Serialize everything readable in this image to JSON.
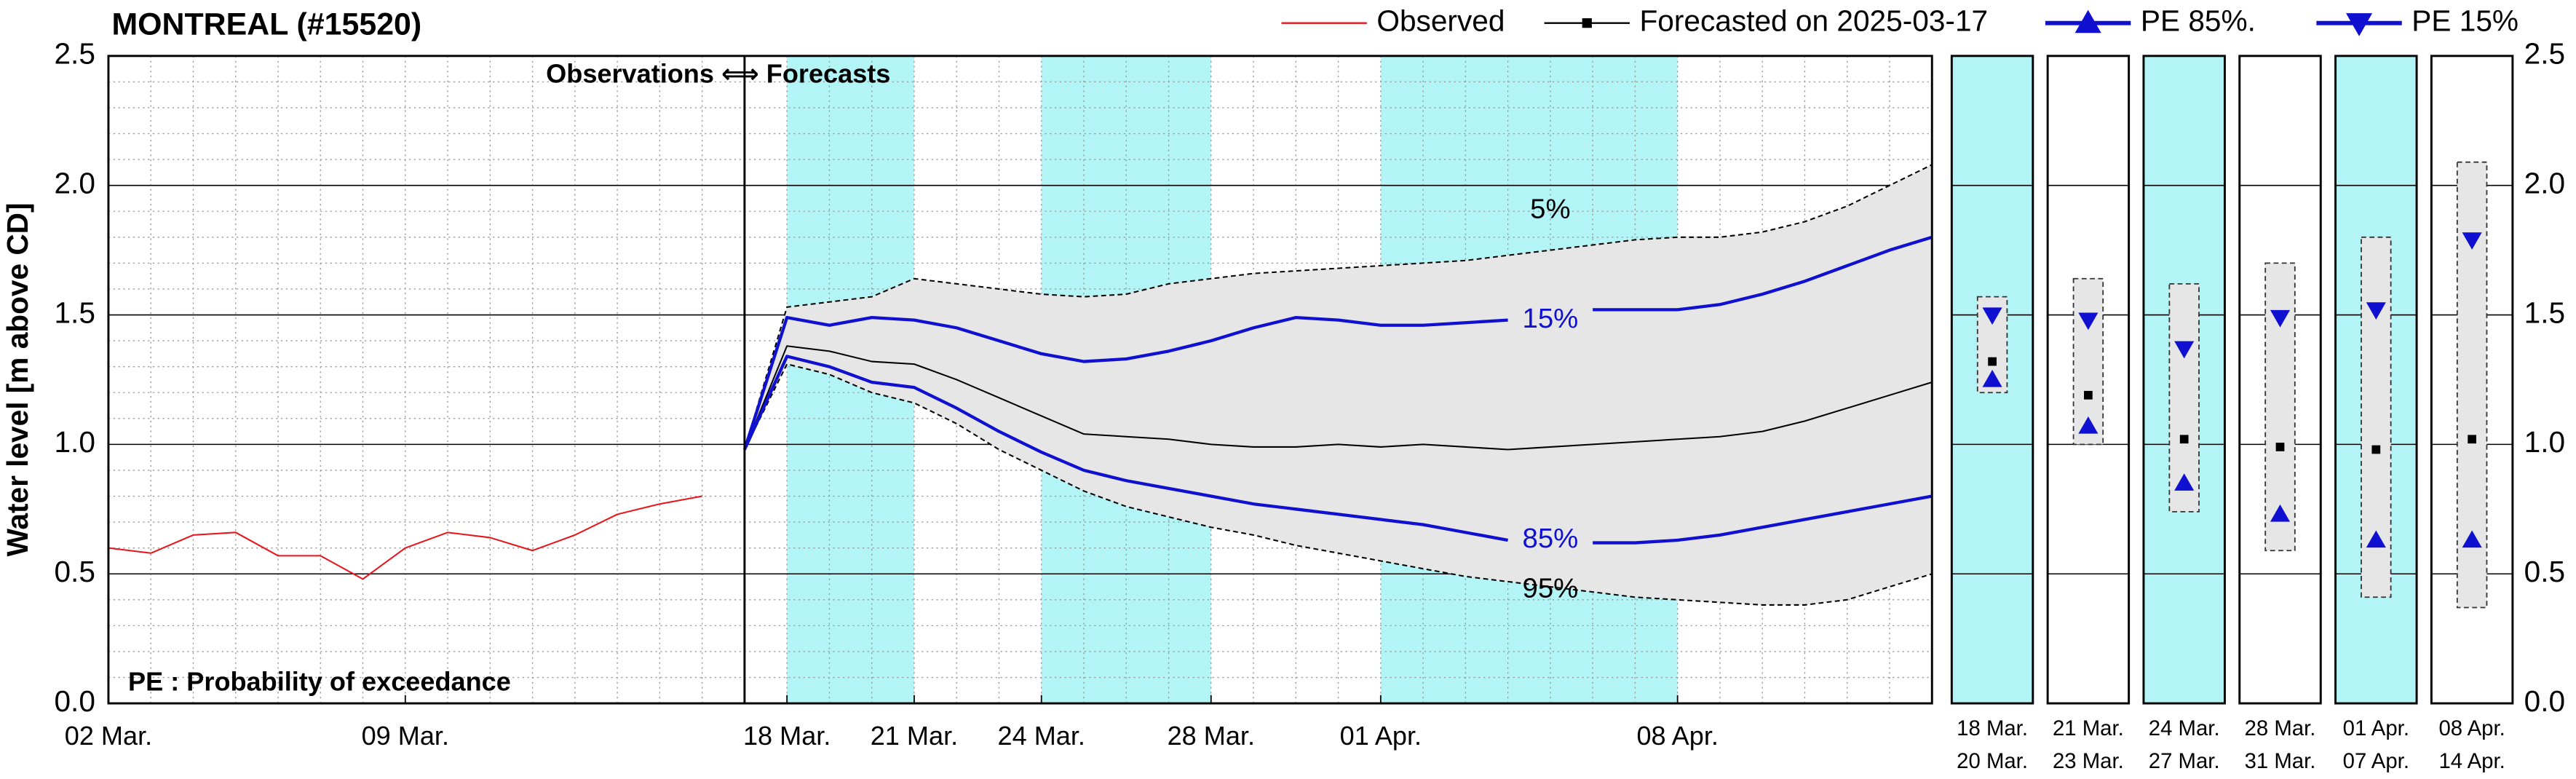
{
  "chart_data": {
    "type": "line",
    "title": "MONTREAL (#15520)",
    "y_label": "Water level [m above CD]",
    "ylim": [
      0,
      2.5
    ],
    "yticks": [
      {
        "value": 0,
        "label": "0.0"
      },
      {
        "value": 0.5,
        "label": "0.5"
      },
      {
        "value": 1,
        "label": "1.0"
      },
      {
        "value": 1.5,
        "label": "1.5"
      },
      {
        "value": 2,
        "label": "2.0"
      },
      {
        "value": 2.5,
        "label": "2.5"
      }
    ],
    "xlim": [
      "2025-03-02",
      "2025-04-14"
    ],
    "xticks": [
      {
        "value": "2025-03-02",
        "label": "02 Mar."
      },
      {
        "value": "2025-03-09",
        "label": "09 Mar."
      },
      {
        "value": "2025-03-18",
        "label": "18 Mar."
      },
      {
        "value": "2025-03-21",
        "label": "21 Mar."
      },
      {
        "value": "2025-03-24",
        "label": "24 Mar."
      },
      {
        "value": "2025-03-28",
        "label": "28 Mar."
      },
      {
        "value": "2025-04-01",
        "label": "01 Apr."
      },
      {
        "value": "2025-04-08",
        "label": "08 Apr."
      }
    ],
    "grid": true,
    "highlight_color": "#b3f5f7",
    "envelope_color": "#e6e6e6",
    "series": [
      {
        "name": "Observed",
        "color": "#e8141a",
        "marker": "none",
        "x": [
          "2025-03-02",
          "2025-03-03",
          "2025-03-04",
          "2025-03-05",
          "2025-03-06",
          "2025-03-07",
          "2025-03-08",
          "2025-03-09",
          "2025-03-10",
          "2025-03-11",
          "2025-03-12",
          "2025-03-13",
          "2025-03-14",
          "2025-03-15",
          "2025-03-16"
        ],
        "values": [
          0.6,
          0.58,
          0.65,
          0.66,
          0.57,
          0.57,
          0.48,
          0.6,
          0.66,
          0.64,
          0.59,
          0.65,
          0.73,
          0.77,
          0.8
        ]
      },
      {
        "name": "Forecasted on 2025-03-17",
        "color": "#000000",
        "marker": "square",
        "x": [
          "2025-03-17",
          "2025-03-18",
          "2025-03-19",
          "2025-03-20",
          "2025-03-21",
          "2025-03-22",
          "2025-03-23",
          "2025-03-24",
          "2025-03-25",
          "2025-03-26",
          "2025-03-27",
          "2025-03-28",
          "2025-03-29",
          "2025-03-30",
          "2025-03-31",
          "2025-04-01",
          "2025-04-02",
          "2025-04-03",
          "2025-04-04",
          "2025-04-05",
          "2025-04-06",
          "2025-04-07",
          "2025-04-08",
          "2025-04-09",
          "2025-04-10",
          "2025-04-11",
          "2025-04-12",
          "2025-04-13",
          "2025-04-14"
        ],
        "values": [
          0.98,
          1.38,
          1.36,
          1.32,
          1.31,
          1.25,
          1.18,
          1.11,
          1.04,
          1.03,
          1.02,
          1.0,
          0.99,
          0.99,
          1.0,
          0.99,
          1.0,
          0.99,
          0.98,
          0.99,
          1.0,
          1.01,
          1.02,
          1.03,
          1.05,
          1.09,
          1.14,
          1.19,
          1.24
        ]
      },
      {
        "name": "PE 85%.",
        "color": "#1010d0",
        "marker": "triangle-up",
        "label": "85%",
        "x": [
          "2025-03-17",
          "2025-03-18",
          "2025-03-19",
          "2025-03-20",
          "2025-03-21",
          "2025-03-22",
          "2025-03-23",
          "2025-03-24",
          "2025-03-25",
          "2025-03-26",
          "2025-03-27",
          "2025-03-28",
          "2025-03-29",
          "2025-03-30",
          "2025-03-31",
          "2025-04-01",
          "2025-04-02",
          "2025-04-03",
          "2025-04-04",
          "2025-04-05",
          "2025-04-06",
          "2025-04-07",
          "2025-04-08",
          "2025-04-09",
          "2025-04-10",
          "2025-04-11",
          "2025-04-12",
          "2025-04-13",
          "2025-04-14"
        ],
        "values": [
          0.98,
          1.34,
          1.3,
          1.24,
          1.22,
          1.14,
          1.05,
          0.97,
          0.9,
          0.86,
          0.83,
          0.8,
          0.77,
          0.75,
          0.73,
          0.71,
          0.69,
          0.66,
          0.63,
          null,
          0.62,
          0.62,
          0.63,
          0.65,
          0.68,
          0.71,
          0.74,
          0.77,
          0.8
        ]
      },
      {
        "name": "PE 15%",
        "color": "#1010d0",
        "marker": "triangle-down",
        "label": "15%",
        "x": [
          "2025-03-17",
          "2025-03-18",
          "2025-03-19",
          "2025-03-20",
          "2025-03-21",
          "2025-03-22",
          "2025-03-23",
          "2025-03-24",
          "2025-03-25",
          "2025-03-26",
          "2025-03-27",
          "2025-03-28",
          "2025-03-29",
          "2025-03-30",
          "2025-03-31",
          "2025-04-01",
          "2025-04-02",
          "2025-04-03",
          "2025-04-04",
          "2025-04-05",
          "2025-04-06",
          "2025-04-07",
          "2025-04-08",
          "2025-04-09",
          "2025-04-10",
          "2025-04-11",
          "2025-04-12",
          "2025-04-13",
          "2025-04-14"
        ],
        "values": [
          0.98,
          1.49,
          1.46,
          1.49,
          1.48,
          1.45,
          1.4,
          1.35,
          1.32,
          1.33,
          1.36,
          1.4,
          1.45,
          1.49,
          1.48,
          1.46,
          1.46,
          1.47,
          1.48,
          null,
          1.52,
          1.52,
          1.52,
          1.54,
          1.58,
          1.63,
          1.69,
          1.75,
          1.8
        ]
      }
    ],
    "envelope": {
      "x": [
        "2025-03-17",
        "2025-03-18",
        "2025-03-19",
        "2025-03-20",
        "2025-03-21",
        "2025-03-22",
        "2025-03-23",
        "2025-03-24",
        "2025-03-25",
        "2025-03-26",
        "2025-03-27",
        "2025-03-28",
        "2025-03-29",
        "2025-03-30",
        "2025-03-31",
        "2025-04-01",
        "2025-04-02",
        "2025-04-03",
        "2025-04-04",
        "2025-04-05",
        "2025-04-06",
        "2025-04-07",
        "2025-04-08",
        "2025-04-09",
        "2025-04-10",
        "2025-04-11",
        "2025-04-12",
        "2025-04-13",
        "2025-04-14"
      ],
      "upper_label": "5%",
      "upper": [
        0.98,
        1.53,
        1.55,
        1.57,
        1.64,
        1.62,
        1.6,
        1.58,
        1.57,
        1.58,
        1.62,
        1.64,
        1.66,
        1.67,
        1.68,
        1.69,
        1.7,
        1.71,
        1.73,
        1.75,
        1.77,
        1.79,
        1.8,
        1.8,
        1.82,
        1.86,
        1.92,
        2.0,
        2.08
      ],
      "lower_label": "95%",
      "lower": [
        0.98,
        1.31,
        1.27,
        1.2,
        1.16,
        1.08,
        0.98,
        0.9,
        0.82,
        0.76,
        0.72,
        0.68,
        0.65,
        0.61,
        0.58,
        0.55,
        0.52,
        0.49,
        0.47,
        0.45,
        0.43,
        0.41,
        0.4,
        0.39,
        0.38,
        0.38,
        0.4,
        0.45,
        0.5
      ]
    },
    "annotations": [
      "Observations ⟺ Forecasts",
      "PE : Probability of exceedance"
    ],
    "periods": {
      "start": [
        "2025-03-18",
        "2025-03-21",
        "2025-03-24",
        "2025-03-28",
        "2025-04-01",
        "2025-04-08"
      ],
      "end": [
        "2025-03-20",
        "2025-03-23",
        "2025-03-27",
        "2025-03-31",
        "2025-04-07",
        "2025-04-14"
      ],
      "start_label": [
        "18 Mar.",
        "21 Mar.",
        "24 Mar.",
        "28 Mar.",
        "01 Apr.",
        "08 Apr."
      ],
      "end_label": [
        "20 Mar.",
        "23 Mar.",
        "27 Mar.",
        "31 Mar.",
        "07 Apr.",
        "14 Apr."
      ],
      "highlight": [
        true,
        false,
        true,
        false,
        true,
        false
      ],
      "low": [
        1.2,
        1.0,
        0.74,
        0.59,
        0.41,
        0.37
      ],
      "high": [
        1.57,
        1.64,
        1.62,
        1.7,
        1.8,
        2.09
      ],
      "median": [
        1.32,
        1.19,
        1.02,
        0.99,
        0.98,
        1.02
      ],
      "pe85": [
        1.25,
        1.07,
        0.85,
        0.73,
        0.63,
        0.63
      ],
      "pe15": [
        1.5,
        1.48,
        1.37,
        1.49,
        1.52,
        1.79
      ]
    }
  }
}
